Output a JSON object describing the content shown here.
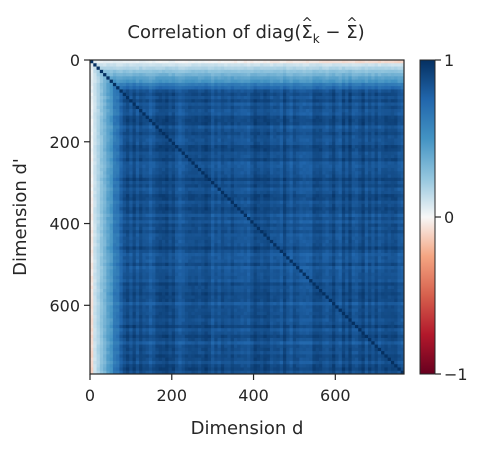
{
  "chart_data": {
    "type": "heatmap",
    "title_parts": {
      "prefix": "Correlation of diag(",
      "sigma": "Σ",
      "hat": "^",
      "subscript": "k",
      "minus": " − ",
      "suffix": ")"
    },
    "xlabel": "Dimension d",
    "ylabel": "Dimension d'",
    "x_ticks": [
      0,
      200,
      400,
      600
    ],
    "y_ticks": [
      0,
      200,
      400,
      600
    ],
    "xlim": [
      0,
      768
    ],
    "ylim": [
      768,
      0
    ],
    "colorbar": {
      "ticks": [
        1,
        0,
        -1
      ],
      "tick_labels": [
        "1",
        "0",
        "−1"
      ],
      "vmin": -1,
      "vmax": 1,
      "colormap": "RdBu"
    },
    "matrix_description_values": {
      "diagonal": 1.0,
      "bulk_typical": 0.85,
      "early_dimension_range": [
        0,
        80
      ],
      "first_row_min": -0.1
    },
    "colors": {
      "low": "#67001f",
      "mid": "#f7f7f7",
      "high": "#053061",
      "axis": "#262626"
    }
  }
}
